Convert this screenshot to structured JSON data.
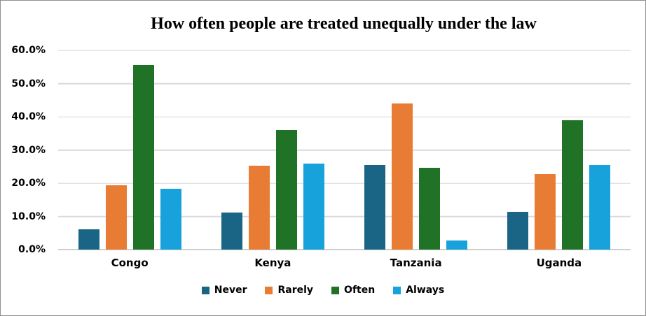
{
  "chart_data": {
    "type": "bar",
    "title": "How often people are treated unequally under the law",
    "categories": [
      "Congo",
      "Kenya",
      "Tanzania",
      "Uganda"
    ],
    "series": [
      {
        "name": "Never",
        "color": "#1A6586",
        "values": [
          6.2,
          11.2,
          25.5,
          11.4
        ]
      },
      {
        "name": "Rarely",
        "color": "#E87C34",
        "values": [
          19.4,
          25.2,
          44.0,
          22.8
        ]
      },
      {
        "name": "Often",
        "color": "#1F7226",
        "values": [
          55.6,
          36.1,
          24.6,
          38.9
        ]
      },
      {
        "name": "Always",
        "color": "#18A2DB",
        "values": [
          18.4,
          25.8,
          2.7,
          25.4
        ]
      }
    ],
    "xlabel": "",
    "ylabel": "",
    "ylim": [
      0,
      60
    ],
    "ytick_values": [
      0,
      10,
      20,
      30,
      40,
      50,
      60
    ],
    "yticks": [
      "0.0%",
      "10.0%",
      "20.0%",
      "30.0%",
      "40.0%",
      "50.0%",
      "60.0%"
    ],
    "grid": true,
    "legend_position": "bottom",
    "colors": {
      "gridline": "#d9d9d9",
      "axis_line": "#cfcfcf",
      "frame_border": "#8f8f8f",
      "text": "#000000",
      "background": "#ffffff"
    }
  }
}
